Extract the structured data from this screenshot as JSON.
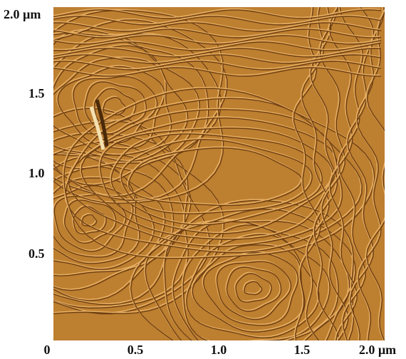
{
  "y_labels": [
    "2.0 µm",
    "1.5",
    "1.0",
    "0.5"
  ],
  "x_labels": [
    "0",
    "0.5",
    "1.0",
    "1.5",
    "2.0 µm"
  ]
}
